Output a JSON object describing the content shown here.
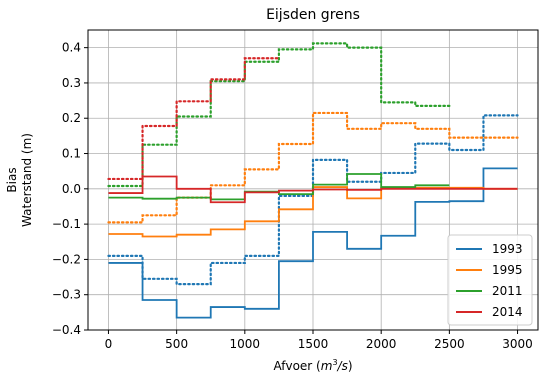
{
  "chart_data": {
    "type": "line",
    "title": "Eijsden grens",
    "xlabel": "Afvoer (m³/s)",
    "ylabel_line1": "Bias",
    "ylabel_line2": "Waterstand (m)",
    "xlim": [
      -150,
      3150
    ],
    "ylim": [
      -0.4,
      0.45
    ],
    "xticks": [
      0,
      500,
      1000,
      1500,
      2000,
      2500,
      3000
    ],
    "xtick_labels": [
      "0",
      "500",
      "1000",
      "1500",
      "2000",
      "2500",
      "3000"
    ],
    "yticks": [
      -0.4,
      -0.3,
      -0.2,
      -0.1,
      0.0,
      0.1,
      0.2,
      0.3,
      0.4
    ],
    "ytick_labels": [
      "−0.4",
      "−0.3",
      "−0.2",
      "−0.1",
      "0.0",
      "0.1",
      "0.2",
      "0.3",
      "0.4"
    ],
    "grid": true,
    "legend_position": "lower-right",
    "step_edges": [
      0,
      250,
      500,
      750,
      1000,
      1250,
      1500,
      1750,
      2000,
      2250,
      2500,
      2750,
      3000
    ],
    "series": [
      {
        "name": "1993",
        "color": "#1f77b4",
        "style": "solid",
        "values": [
          -0.21,
          -0.315,
          -0.365,
          -0.335,
          -0.34,
          -0.205,
          -0.122,
          -0.17,
          -0.133,
          -0.037,
          -0.035,
          0.058
        ]
      },
      {
        "name": "",
        "color": "#1f77b4",
        "style": "dotted",
        "values": [
          -0.19,
          -0.255,
          -0.27,
          -0.21,
          -0.19,
          -0.02,
          0.082,
          0.02,
          0.045,
          0.128,
          0.11,
          0.208
        ]
      },
      {
        "name": "1995",
        "color": "#ff7f0e",
        "style": "solid",
        "values": [
          -0.128,
          -0.135,
          -0.13,
          -0.115,
          -0.092,
          -0.058,
          0.005,
          -0.027,
          0.003,
          0.003,
          0.003,
          0.0
        ]
      },
      {
        "name": "",
        "color": "#ff7f0e",
        "style": "dotted",
        "values": [
          -0.095,
          -0.075,
          -0.025,
          0.01,
          0.055,
          0.127,
          0.215,
          0.17,
          0.186,
          0.17,
          0.145,
          0.145
        ]
      },
      {
        "name": "2011",
        "color": "#2ca02c",
        "style": "solid",
        "values": [
          -0.025,
          -0.028,
          -0.025,
          -0.03,
          -0.008,
          -0.015,
          0.012,
          0.042,
          0.005,
          0.01,
          null,
          null
        ]
      },
      {
        "name": "",
        "color": "#2ca02c",
        "style": "dotted",
        "values": [
          0.008,
          0.125,
          0.205,
          0.305,
          0.36,
          0.395,
          0.412,
          0.4,
          0.245,
          0.235,
          null,
          null
        ]
      },
      {
        "name": "2014",
        "color": "#d62728",
        "style": "solid",
        "values": [
          -0.012,
          0.035,
          0.0,
          -0.038,
          -0.01,
          -0.005,
          -0.002,
          -0.003,
          0.0,
          0.0,
          0.0,
          0.0
        ]
      },
      {
        "name": "",
        "color": "#d62728",
        "style": "dotted",
        "values": [
          0.028,
          0.178,
          0.248,
          0.31,
          0.37,
          null,
          null,
          null,
          null,
          null,
          null,
          null
        ]
      }
    ]
  }
}
